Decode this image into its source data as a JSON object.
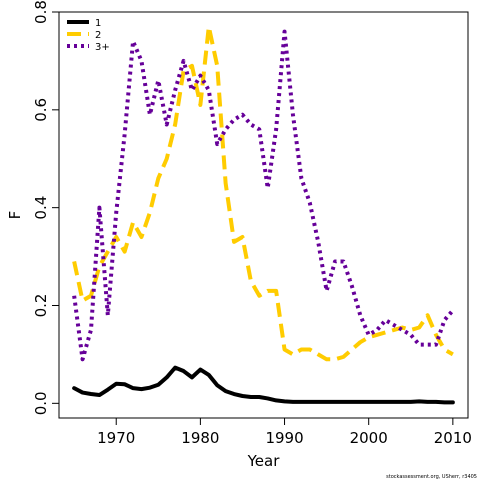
{
  "chart_data": {
    "type": "line",
    "title": "",
    "xlabel": "Year",
    "ylabel": "F",
    "xlim": [
      1963.2,
      2011.8
    ],
    "ylim": [
      -0.03,
      0.8
    ],
    "x_ticks": [
      1970,
      1980,
      1990,
      2000,
      2010
    ],
    "y_ticks": [
      0.0,
      0.2,
      0.4,
      0.6,
      0.8
    ],
    "x_tick_labels": [
      "1970",
      "1980",
      "1990",
      "2000",
      "2010"
    ],
    "y_tick_labels": [
      "0.0",
      "0.2",
      "0.4",
      "0.6",
      "0.8"
    ],
    "grid": false,
    "legend_position": "top-left",
    "credit": "stockassessment.org, USherr, r3405",
    "x": [
      1965,
      1966,
      1967,
      1968,
      1969,
      1970,
      1971,
      1972,
      1973,
      1974,
      1975,
      1976,
      1977,
      1978,
      1979,
      1980,
      1981,
      1982,
      1983,
      1984,
      1985,
      1986,
      1987,
      1988,
      1989,
      1990,
      1991,
      1992,
      1993,
      1994,
      1995,
      1996,
      1997,
      1998,
      1999,
      2000,
      2001,
      2002,
      2003,
      2004,
      2005,
      2006,
      2007,
      2008,
      2009,
      2010
    ],
    "series": [
      {
        "name": "1",
        "color": "#000000",
        "dash": "solid",
        "values": [
          0.031,
          0.022,
          0.019,
          0.017,
          0.028,
          0.04,
          0.039,
          0.031,
          0.029,
          0.032,
          0.038,
          0.053,
          0.073,
          0.066,
          0.053,
          0.069,
          0.058,
          0.037,
          0.025,
          0.019,
          0.015,
          0.013,
          0.013,
          0.01,
          0.006,
          0.004,
          0.003,
          0.003,
          0.003,
          0.003,
          0.003,
          0.003,
          0.003,
          0.003,
          0.003,
          0.003,
          0.003,
          0.003,
          0.003,
          0.003,
          0.003,
          0.004,
          0.003,
          0.003,
          0.002,
          0.002
        ]
      },
      {
        "name": "2",
        "color": "#ffcc00",
        "dash": "long-dash",
        "values": [
          0.29,
          0.21,
          0.22,
          0.28,
          0.31,
          0.34,
          0.31,
          0.37,
          0.34,
          0.39,
          0.46,
          0.5,
          0.57,
          0.68,
          0.69,
          0.61,
          0.77,
          0.69,
          0.45,
          0.33,
          0.34,
          0.25,
          0.22,
          0.23,
          0.23,
          0.11,
          0.1,
          0.11,
          0.11,
          0.1,
          0.09,
          0.09,
          0.095,
          0.11,
          0.125,
          0.135,
          0.14,
          0.145,
          0.15,
          0.155,
          0.15,
          0.155,
          0.18,
          0.14,
          0.11,
          0.1
        ]
      },
      {
        "name": "3+",
        "color": "#660099",
        "dash": "dotted",
        "values": [
          0.22,
          0.09,
          0.15,
          0.4,
          0.18,
          0.39,
          0.55,
          0.74,
          0.7,
          0.59,
          0.66,
          0.57,
          0.64,
          0.7,
          0.64,
          0.67,
          0.64,
          0.53,
          0.56,
          0.58,
          0.59,
          0.57,
          0.56,
          0.44,
          0.56,
          0.76,
          0.59,
          0.46,
          0.41,
          0.33,
          0.23,
          0.29,
          0.29,
          0.24,
          0.18,
          0.14,
          0.15,
          0.17,
          0.16,
          0.15,
          0.14,
          0.12,
          0.12,
          0.12,
          0.17,
          0.19
        ]
      }
    ]
  }
}
